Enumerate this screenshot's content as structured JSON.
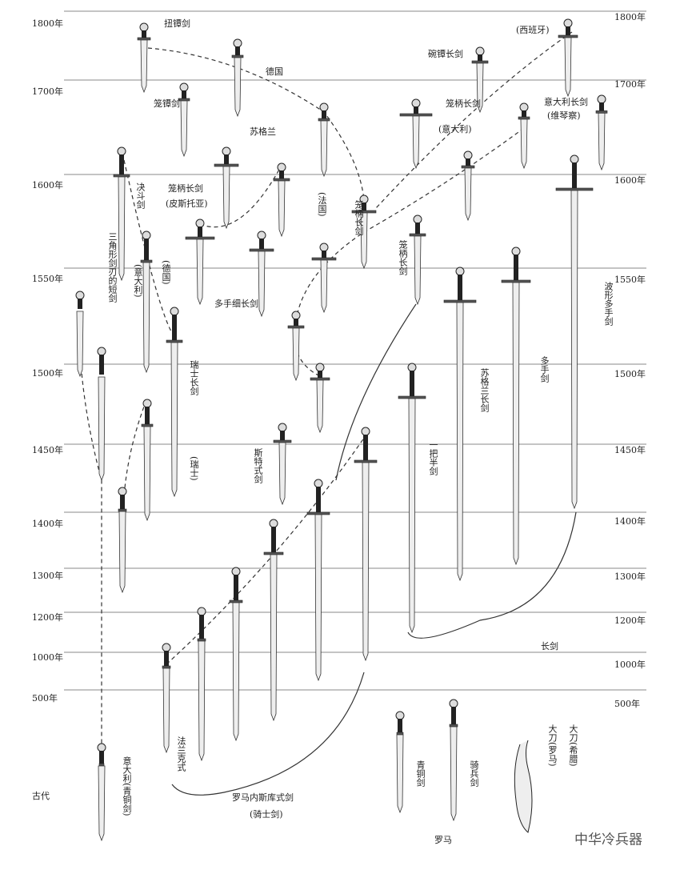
{
  "year_axis": {
    "left": [
      "1800年",
      "1700年",
      "1600年",
      "1550年",
      "1500年",
      "1450年",
      "1400年",
      "1300年",
      "1200年",
      "1000年",
      "500年",
      "古代"
    ],
    "right": [
      "1800年",
      "1700年",
      "1600年",
      "1550年",
      "1500年",
      "1450年",
      "1400年",
      "1300年",
      "1200年",
      "1000年",
      "500年"
    ]
  },
  "labels": [
    "扭镡剑",
    "德国",
    "笼镡剑",
    "苏格兰",
    "碗镡长剑",
    "(西班牙)",
    "笼柄长剑",
    "(意大利)",
    "意大利长剑",
    "(维琴察)",
    "决斗剑",
    "笼柄长剑",
    "(皮斯托亚)",
    "(法国)",
    "笼柄长剑",
    "三角形剑刃的短剑",
    "(德国)",
    "(意大利)",
    "多手细长剑",
    "笼柄长剑",
    "瑞士长剑",
    "(瑞士)",
    "苏格兰长剑",
    "多手剑",
    "波形多手剑",
    "斯特式剑",
    "一把半剑",
    "长剑",
    "法兰克式",
    "罗马内斯库式剑",
    "(骑士剑)",
    "意大利(青铜剑)",
    "青铜剑",
    "骑兵剑",
    "罗马",
    "大刀(罗马)",
    "大刀(希腊)"
  ],
  "watermark": "中华冷兵器"
}
